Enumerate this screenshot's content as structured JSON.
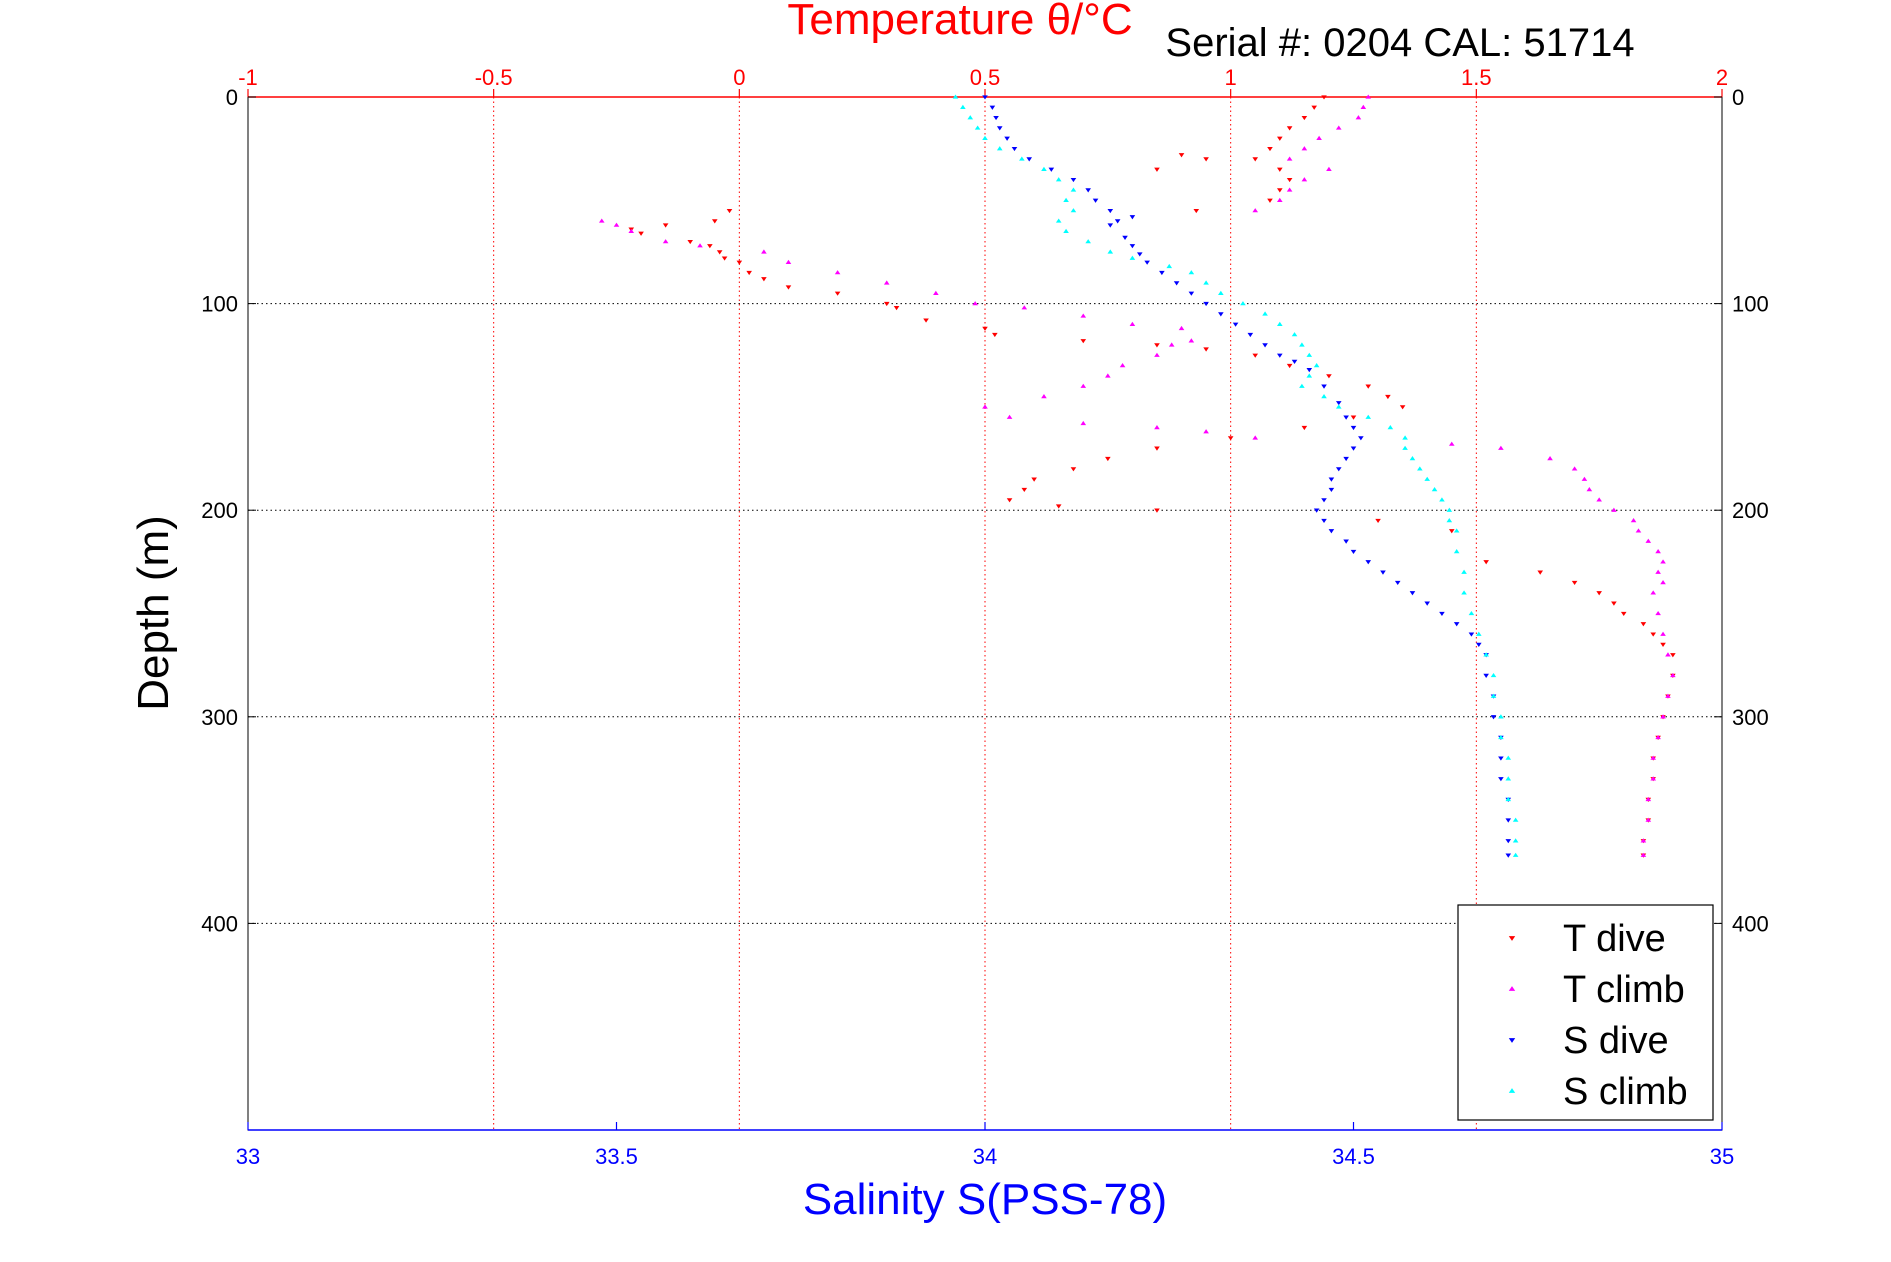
{
  "chart_data": {
    "type": "scatter",
    "title": "Temperature θ/°C",
    "subtitle": "Serial #: 0204  CAL: 51714",
    "xlabel_top": "Temperature θ/°C",
    "xlabel": "Salinity S(PSS-78)",
    "ylabel": "Depth (m)",
    "temperature_axis": {
      "range": [
        -1,
        2
      ],
      "ticks": [
        -1,
        -0.5,
        0,
        0.5,
        1,
        1.5,
        2
      ],
      "tick_labels": [
        "-1",
        "-0.5",
        "0",
        "0.5",
        "1",
        "1.5",
        "2"
      ],
      "color": "#ff0000"
    },
    "salinity_axis": {
      "range": [
        33,
        35
      ],
      "ticks": [
        33,
        33.5,
        34,
        34.5,
        35
      ],
      "tick_labels": [
        "33",
        "33.5",
        "34",
        "34.5",
        "35"
      ],
      "color": "#0000ff"
    },
    "depth_axis": {
      "range": [
        0,
        500
      ],
      "reversed": true,
      "ticks": [
        0,
        100,
        200,
        300,
        400
      ],
      "tick_labels": [
        "0",
        "100",
        "200",
        "300",
        "400"
      ]
    },
    "grid": true,
    "legend": {
      "position": "bottom-right",
      "entries": [
        "T dive",
        "T climb",
        "S dive",
        "S climb"
      ]
    },
    "series": [
      {
        "name": "T dive",
        "axis": "temperature",
        "color": "#ff0000",
        "marker": "triangle-down",
        "points": [
          [
            1.19,
            0
          ],
          [
            1.17,
            5
          ],
          [
            1.15,
            10
          ],
          [
            1.12,
            15
          ],
          [
            1.1,
            20
          ],
          [
            1.08,
            25
          ],
          [
            1.05,
            30
          ],
          [
            1.1,
            35
          ],
          [
            1.12,
            40
          ],
          [
            1.1,
            45
          ],
          [
            1.08,
            50
          ],
          [
            0.9,
            28
          ],
          [
            0.95,
            30
          ],
          [
            0.85,
            35
          ],
          [
            0.93,
            55
          ],
          [
            -0.02,
            55
          ],
          [
            -0.05,
            60
          ],
          [
            -0.15,
            62
          ],
          [
            -0.22,
            64
          ],
          [
            -0.2,
            66
          ],
          [
            -0.1,
            70
          ],
          [
            -0.06,
            72
          ],
          [
            -0.04,
            75
          ],
          [
            -0.03,
            78
          ],
          [
            0.0,
            80
          ],
          [
            0.02,
            85
          ],
          [
            0.05,
            88
          ],
          [
            0.1,
            92
          ],
          [
            0.2,
            95
          ],
          [
            0.3,
            100
          ],
          [
            0.32,
            102
          ],
          [
            0.38,
            108
          ],
          [
            0.5,
            112
          ],
          [
            0.52,
            115
          ],
          [
            0.7,
            118
          ],
          [
            0.85,
            120
          ],
          [
            0.95,
            122
          ],
          [
            1.05,
            125
          ],
          [
            1.12,
            130
          ],
          [
            1.2,
            135
          ],
          [
            1.28,
            140
          ],
          [
            1.32,
            145
          ],
          [
            1.35,
            150
          ],
          [
            1.25,
            155
          ],
          [
            1.15,
            160
          ],
          [
            1.0,
            165
          ],
          [
            0.85,
            170
          ],
          [
            0.75,
            175
          ],
          [
            0.68,
            180
          ],
          [
            0.6,
            185
          ],
          [
            0.58,
            190
          ],
          [
            0.55,
            195
          ],
          [
            0.65,
            198
          ],
          [
            0.85,
            200
          ],
          [
            1.3,
            205
          ],
          [
            1.45,
            210
          ],
          [
            1.52,
            225
          ],
          [
            1.63,
            230
          ],
          [
            1.7,
            235
          ],
          [
            1.75,
            240
          ],
          [
            1.78,
            245
          ],
          [
            1.8,
            250
          ],
          [
            1.84,
            255
          ],
          [
            1.86,
            260
          ],
          [
            1.88,
            265
          ],
          [
            1.9,
            270
          ],
          [
            1.9,
            280
          ],
          [
            1.89,
            290
          ],
          [
            1.88,
            300
          ],
          [
            1.87,
            310
          ],
          [
            1.86,
            320
          ],
          [
            1.86,
            330
          ],
          [
            1.85,
            340
          ],
          [
            1.85,
            350
          ],
          [
            1.84,
            360
          ],
          [
            1.84,
            367
          ]
        ]
      },
      {
        "name": "T climb",
        "axis": "temperature",
        "color": "#ff00ff",
        "marker": "triangle-up",
        "points": [
          [
            1.28,
            0
          ],
          [
            1.27,
            5
          ],
          [
            1.26,
            10
          ],
          [
            1.22,
            15
          ],
          [
            1.18,
            20
          ],
          [
            1.15,
            25
          ],
          [
            1.12,
            30
          ],
          [
            1.2,
            35
          ],
          [
            1.15,
            40
          ],
          [
            1.12,
            45
          ],
          [
            1.1,
            50
          ],
          [
            1.05,
            55
          ],
          [
            -0.28,
            60
          ],
          [
            -0.25,
            62
          ],
          [
            -0.22,
            65
          ],
          [
            -0.15,
            70
          ],
          [
            -0.08,
            72
          ],
          [
            0.05,
            75
          ],
          [
            0.1,
            80
          ],
          [
            0.2,
            85
          ],
          [
            0.3,
            90
          ],
          [
            0.4,
            95
          ],
          [
            0.48,
            100
          ],
          [
            0.58,
            102
          ],
          [
            0.7,
            106
          ],
          [
            0.8,
            110
          ],
          [
            0.9,
            112
          ],
          [
            0.92,
            118
          ],
          [
            0.88,
            120
          ],
          [
            0.85,
            125
          ],
          [
            0.78,
            130
          ],
          [
            0.75,
            135
          ],
          [
            0.7,
            140
          ],
          [
            0.62,
            145
          ],
          [
            0.5,
            150
          ],
          [
            0.55,
            155
          ],
          [
            0.7,
            158
          ],
          [
            0.85,
            160
          ],
          [
            0.95,
            162
          ],
          [
            1.05,
            165
          ],
          [
            1.45,
            168
          ],
          [
            1.55,
            170
          ],
          [
            1.65,
            175
          ],
          [
            1.7,
            180
          ],
          [
            1.72,
            185
          ],
          [
            1.73,
            190
          ],
          [
            1.75,
            195
          ],
          [
            1.78,
            200
          ],
          [
            1.82,
            205
          ],
          [
            1.83,
            210
          ],
          [
            1.85,
            215
          ],
          [
            1.87,
            220
          ],
          [
            1.88,
            225
          ],
          [
            1.87,
            230
          ],
          [
            1.88,
            235
          ],
          [
            1.86,
            240
          ],
          [
            1.87,
            250
          ],
          [
            1.88,
            260
          ],
          [
            1.89,
            270
          ],
          [
            1.9,
            280
          ],
          [
            1.89,
            290
          ],
          [
            1.88,
            300
          ],
          [
            1.87,
            310
          ],
          [
            1.86,
            320
          ],
          [
            1.86,
            330
          ],
          [
            1.85,
            340
          ],
          [
            1.85,
            350
          ],
          [
            1.84,
            360
          ],
          [
            1.84,
            367
          ]
        ]
      },
      {
        "name": "S dive",
        "axis": "salinity",
        "color": "#0000ff",
        "marker": "triangle-down",
        "points": [
          [
            34.0,
            0
          ],
          [
            34.01,
            5
          ],
          [
            34.015,
            10
          ],
          [
            34.02,
            15
          ],
          [
            34.03,
            20
          ],
          [
            34.04,
            25
          ],
          [
            34.06,
            30
          ],
          [
            34.09,
            35
          ],
          [
            34.12,
            40
          ],
          [
            34.14,
            45
          ],
          [
            34.15,
            50
          ],
          [
            34.17,
            55
          ],
          [
            34.2,
            58
          ],
          [
            34.18,
            60
          ],
          [
            34.17,
            62
          ],
          [
            34.19,
            68
          ],
          [
            34.2,
            72
          ],
          [
            34.21,
            76
          ],
          [
            34.22,
            80
          ],
          [
            34.24,
            85
          ],
          [
            34.26,
            90
          ],
          [
            34.28,
            95
          ],
          [
            34.3,
            100
          ],
          [
            34.32,
            105
          ],
          [
            34.34,
            110
          ],
          [
            34.36,
            115
          ],
          [
            34.38,
            120
          ],
          [
            34.4,
            125
          ],
          [
            34.42,
            128
          ],
          [
            34.44,
            132
          ],
          [
            34.46,
            140
          ],
          [
            34.48,
            148
          ],
          [
            34.49,
            155
          ],
          [
            34.5,
            160
          ],
          [
            34.51,
            165
          ],
          [
            34.5,
            170
          ],
          [
            34.49,
            175
          ],
          [
            34.48,
            180
          ],
          [
            34.47,
            185
          ],
          [
            34.47,
            190
          ],
          [
            34.46,
            195
          ],
          [
            34.45,
            200
          ],
          [
            34.46,
            205
          ],
          [
            34.47,
            210
          ],
          [
            34.49,
            215
          ],
          [
            34.5,
            220
          ],
          [
            34.52,
            225
          ],
          [
            34.54,
            230
          ],
          [
            34.56,
            235
          ],
          [
            34.58,
            240
          ],
          [
            34.6,
            245
          ],
          [
            34.62,
            250
          ],
          [
            34.64,
            255
          ],
          [
            34.66,
            260
          ],
          [
            34.67,
            265
          ],
          [
            34.68,
            270
          ],
          [
            34.68,
            280
          ],
          [
            34.69,
            290
          ],
          [
            34.69,
            300
          ],
          [
            34.7,
            310
          ],
          [
            34.7,
            320
          ],
          [
            34.7,
            330
          ],
          [
            34.71,
            340
          ],
          [
            34.71,
            350
          ],
          [
            34.71,
            360
          ],
          [
            34.71,
            367
          ]
        ]
      },
      {
        "name": "S climb",
        "axis": "salinity",
        "color": "#00ffff",
        "marker": "triangle-up",
        "points": [
          [
            33.96,
            0
          ],
          [
            33.97,
            5
          ],
          [
            33.98,
            10
          ],
          [
            33.99,
            15
          ],
          [
            34.0,
            20
          ],
          [
            34.02,
            25
          ],
          [
            34.05,
            30
          ],
          [
            34.08,
            35
          ],
          [
            34.1,
            40
          ],
          [
            34.12,
            45
          ],
          [
            34.11,
            50
          ],
          [
            34.12,
            55
          ],
          [
            34.1,
            60
          ],
          [
            34.11,
            65
          ],
          [
            34.14,
            70
          ],
          [
            34.17,
            75
          ],
          [
            34.2,
            78
          ],
          [
            34.25,
            82
          ],
          [
            34.28,
            85
          ],
          [
            34.3,
            90
          ],
          [
            34.32,
            95
          ],
          [
            34.35,
            100
          ],
          [
            34.38,
            105
          ],
          [
            34.4,
            110
          ],
          [
            34.42,
            115
          ],
          [
            34.43,
            120
          ],
          [
            34.44,
            125
          ],
          [
            34.45,
            130
          ],
          [
            34.44,
            135
          ],
          [
            34.43,
            140
          ],
          [
            34.46,
            145
          ],
          [
            34.48,
            150
          ],
          [
            34.52,
            155
          ],
          [
            34.55,
            160
          ],
          [
            34.57,
            165
          ],
          [
            34.57,
            170
          ],
          [
            34.58,
            175
          ],
          [
            34.59,
            180
          ],
          [
            34.6,
            185
          ],
          [
            34.61,
            190
          ],
          [
            34.62,
            195
          ],
          [
            34.63,
            200
          ],
          [
            34.63,
            205
          ],
          [
            34.64,
            210
          ],
          [
            34.64,
            220
          ],
          [
            34.65,
            230
          ],
          [
            34.65,
            240
          ],
          [
            34.66,
            250
          ],
          [
            34.67,
            260
          ],
          [
            34.68,
            270
          ],
          [
            34.69,
            280
          ],
          [
            34.69,
            290
          ],
          [
            34.7,
            300
          ],
          [
            34.7,
            310
          ],
          [
            34.71,
            320
          ],
          [
            34.71,
            330
          ],
          [
            34.71,
            340
          ],
          [
            34.72,
            350
          ],
          [
            34.72,
            360
          ],
          [
            34.72,
            367
          ]
        ]
      }
    ]
  }
}
